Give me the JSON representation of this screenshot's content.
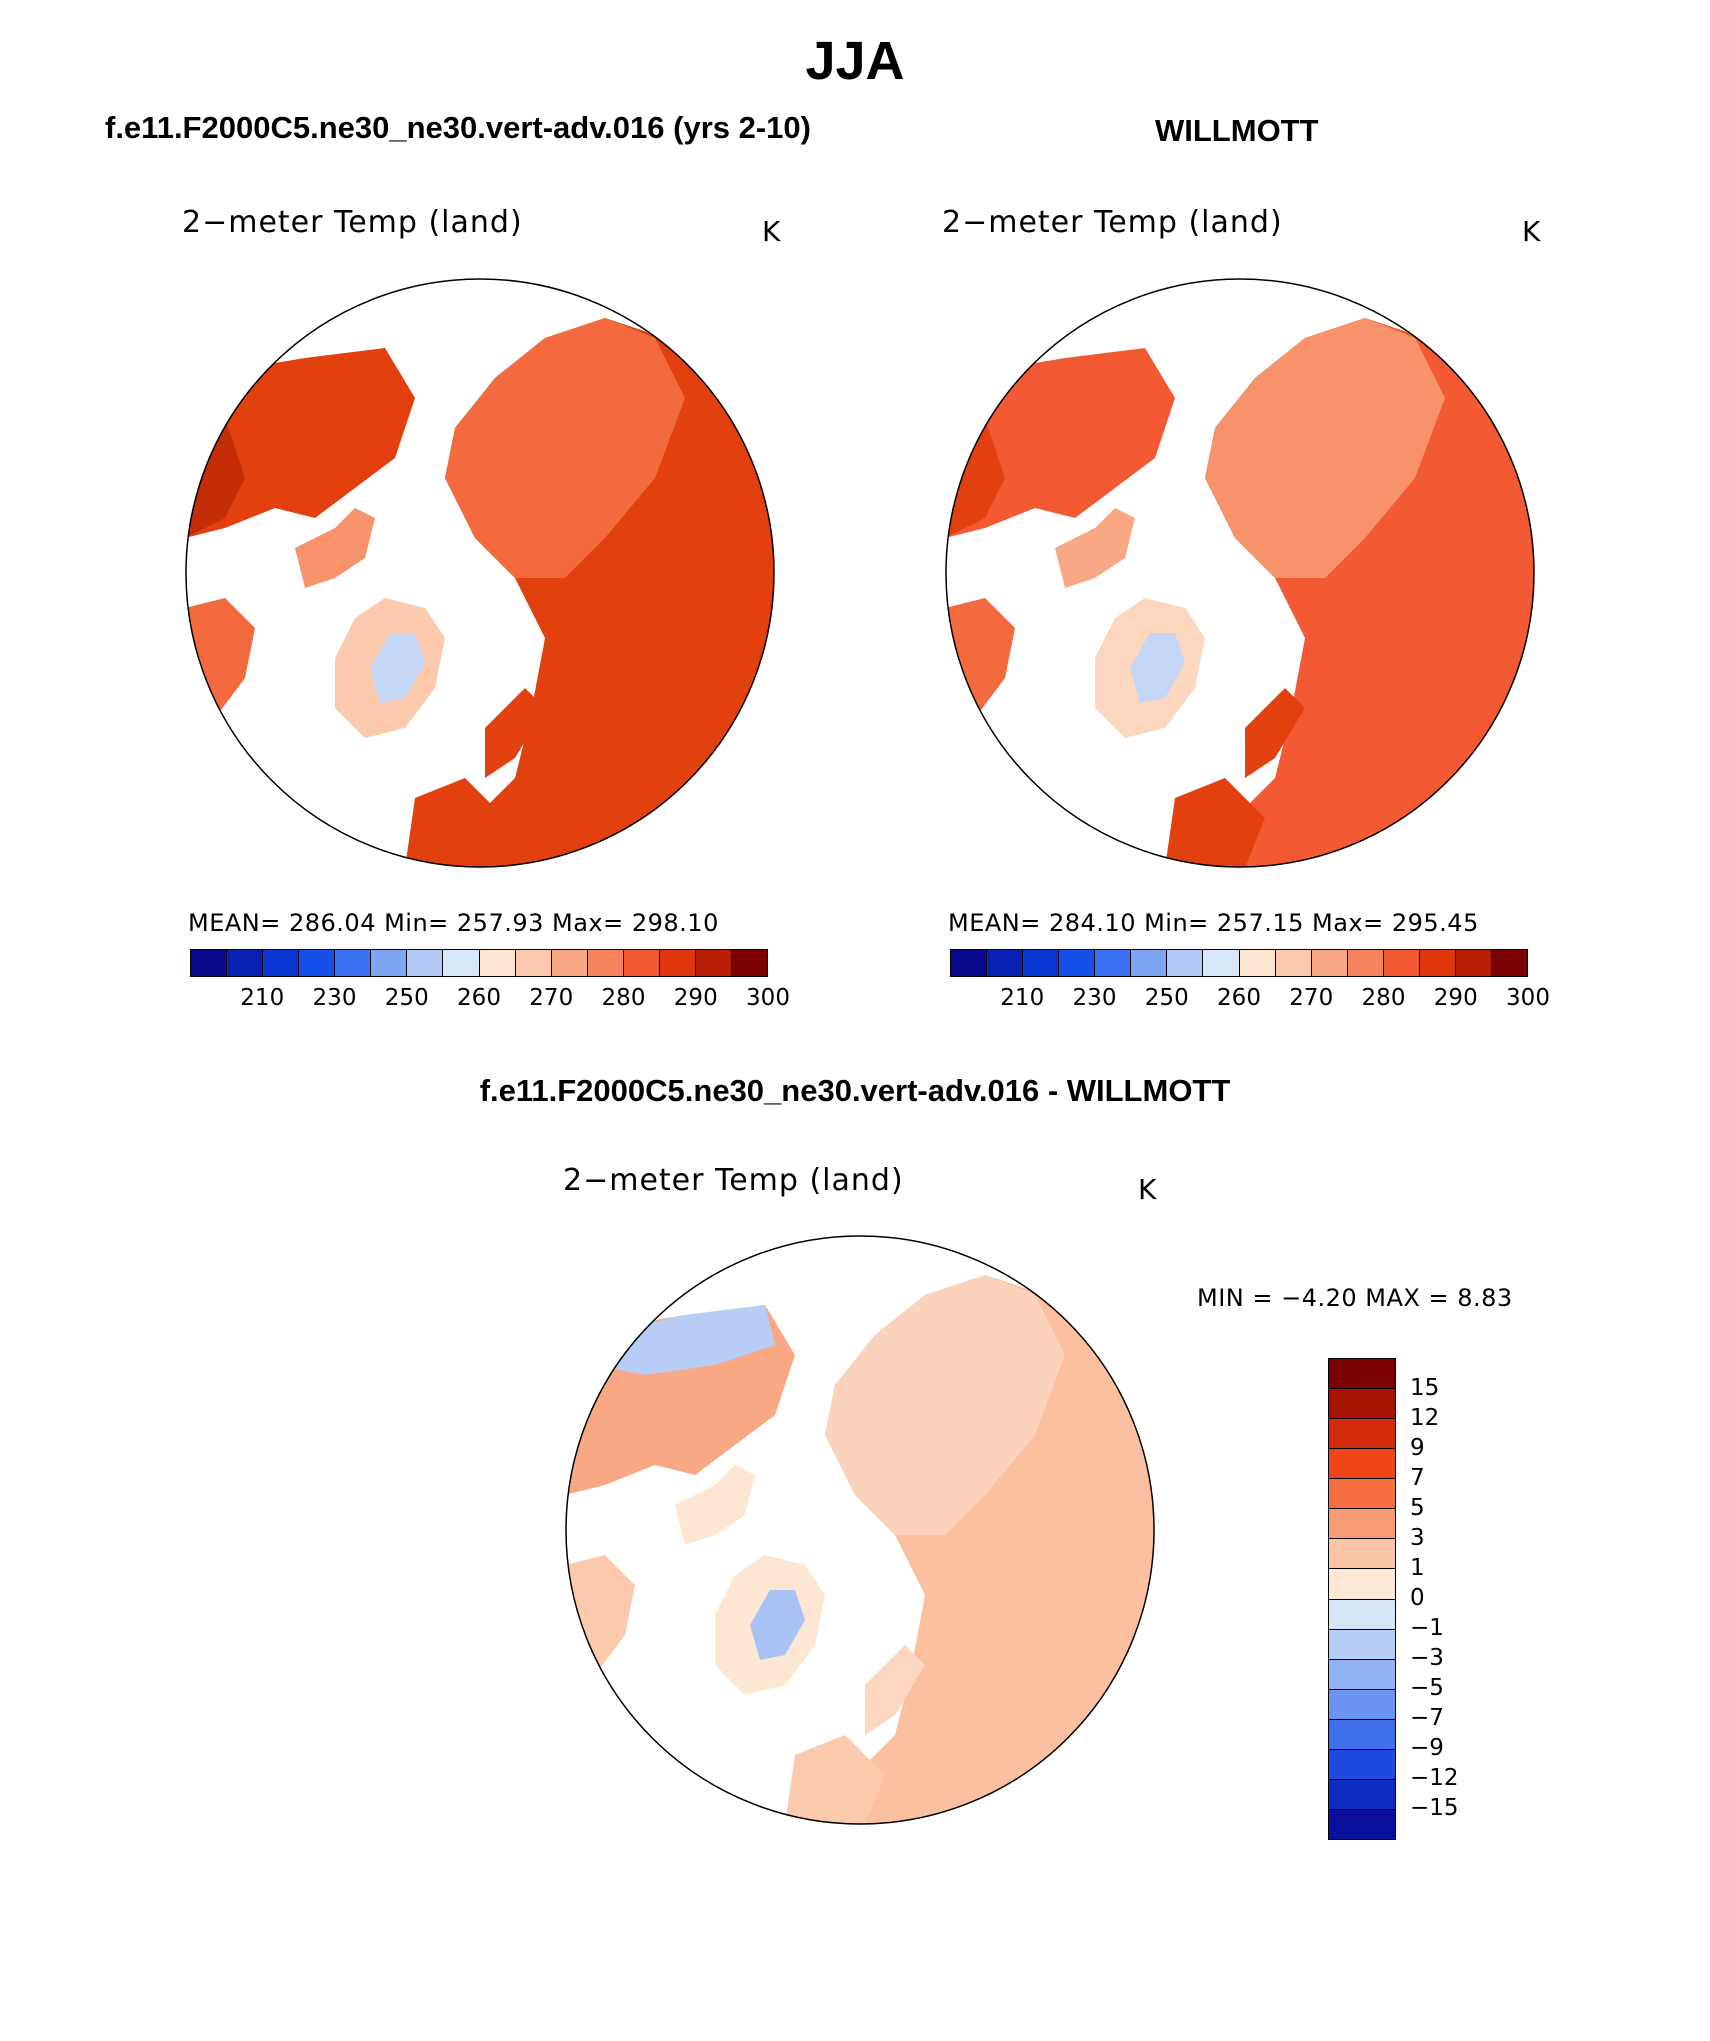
{
  "title": "JJA",
  "panels": [
    {
      "case_label": "f.e11.F2000C5.ne30_ne30.vert-adv.016 (yrs 2-10)",
      "var_title": "2−meter Temp (land)",
      "units": "K",
      "stats": "MEAN=  286.04   Min=  257.93   Max=  298.10"
    },
    {
      "case_label": "WILLMOTT",
      "var_title": "2−meter Temp (land)",
      "units": "K",
      "stats": "MEAN=  284.10   Min=  257.15   Max=  295.45"
    }
  ],
  "abs_colorbar": {
    "colors": [
      "#08088c",
      "#0a22b4",
      "#0a36d2",
      "#1650ea",
      "#3a72f2",
      "#7ea4f4",
      "#b2c8f6",
      "#d8e8f8",
      "#fde6d2",
      "#fcc9ac",
      "#f9a886",
      "#f6845e",
      "#f35a34",
      "#e1370e",
      "#b81d06",
      "#7a0202"
    ],
    "ticks": [
      "210",
      "230",
      "250",
      "260",
      "270",
      "280",
      "290",
      "300"
    ]
  },
  "diff_panel": {
    "case_label": "f.e11.F2000C5.ne30_ne30.vert-adv.016 - WILLMOTT",
    "var_title": "2−meter Temp (land)",
    "units": "K",
    "minmax": "MIN =   −4.20  MAX =    8.83"
  },
  "diff_colorbar": {
    "colors": [
      "#7a0202",
      "#a81404",
      "#d22a0a",
      "#f04418",
      "#f66e42",
      "#f89a72",
      "#fbc4a4",
      "#fde8d6",
      "#d6e6f8",
      "#b6cdf6",
      "#90b2f4",
      "#6a94f0",
      "#3e70ec",
      "#1e4ae0",
      "#0c2cc2",
      "#08109c"
    ],
    "ticks": [
      "15",
      "12",
      "9",
      "7",
      "5",
      "3",
      "1",
      "0",
      "−1",
      "−3",
      "−5",
      "−7",
      "−9",
      "−12",
      "−15"
    ]
  }
}
